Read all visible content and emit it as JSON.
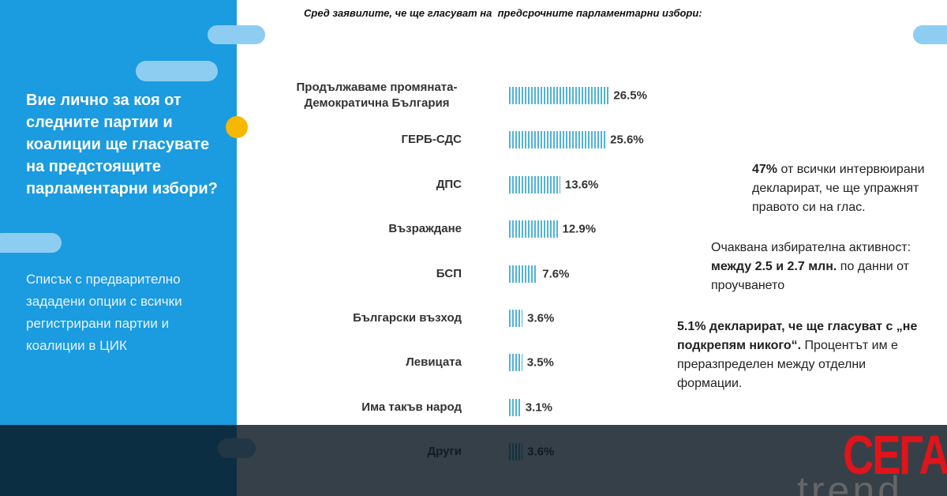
{
  "panel": {
    "question": "Вие лично за коя от следните партии и коалиции ще гласувате на предстоящите парламентарни избори?",
    "description": "Списък с предварително зададени опции с всички регистрирани партии и коалиции в ЦИК"
  },
  "chart_data": {
    "type": "bar",
    "orientation": "horizontal",
    "title": "Сред заявилите, че ще гласуват на  предсрочните парламентарни избори:",
    "categories": [
      "Продължаваме промяната-Демократична България",
      "ГЕРБ-СДС",
      "ДПС",
      "Възраждане",
      "БСП",
      "Български възход",
      "Левицата",
      "Има такъв народ",
      "Други"
    ],
    "values": [
      26.5,
      25.6,
      13.6,
      12.9,
      7.6,
      3.6,
      3.5,
      3.1,
      3.6
    ],
    "value_labels": [
      "26.5%",
      "25.6%",
      "13.6%",
      "12.9%",
      "7.6%",
      "3.6%",
      "3.5%",
      "3.1%",
      "3.6%"
    ],
    "color": "#4fb3d9"
  },
  "notes": [
    [
      {
        "text": "47%",
        "bold": true
      },
      {
        "text": " от всички интервюирани декларират, че ще упражнят правото си на глас.",
        "bold": false
      }
    ],
    [
      {
        "text": "Очаквана избирателна активност: ",
        "bold": false
      },
      {
        "text": "между 2.5 и 2.7 млн.",
        "bold": true
      },
      {
        "text": " по данни от проучването",
        "bold": false
      }
    ],
    [
      {
        "text": "5.1% декларират, че ще гласуват с „не подкрепям никого“.",
        "bold": true
      },
      {
        "text": " Процентът им е преразпределен между отделни формации.",
        "bold": false
      }
    ]
  ],
  "logos": {
    "sega": "СЕГА",
    "trend": "trend"
  }
}
